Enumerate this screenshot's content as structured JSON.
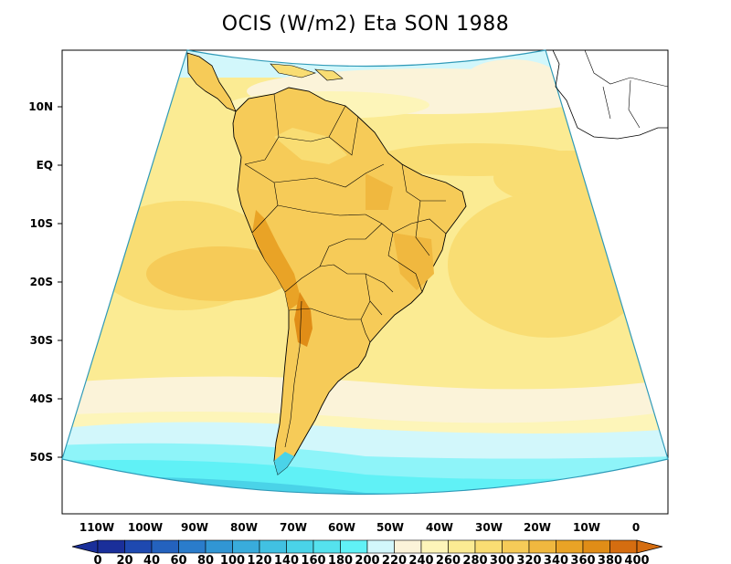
{
  "title": "OCIS (W/m2) Eta SON 1988",
  "axes": {
    "lat_labels": [
      "10N",
      "EQ",
      "10S",
      "20S",
      "30S",
      "40S",
      "50S"
    ],
    "lon_labels": [
      "110W",
      "100W",
      "90W",
      "80W",
      "70W",
      "60W",
      "50W",
      "40W",
      "30W",
      "20W",
      "10W",
      "0"
    ]
  },
  "colorbar": {
    "labels": [
      "0",
      "20",
      "40",
      "60",
      "80",
      "100",
      "120",
      "140",
      "160",
      "180",
      "200",
      "220",
      "240",
      "260",
      "280",
      "300",
      "320",
      "340",
      "360",
      "380",
      "400"
    ],
    "colors": [
      "#1a2f9a",
      "#1e49b0",
      "#2462be",
      "#2a7ccb",
      "#3196d4",
      "#39acdc",
      "#41c1e2",
      "#4ad3e8",
      "#55e2ee",
      "#60f1f6",
      "#d2f7fb",
      "#fbf3d9",
      "#fdf5b9",
      "#fbeb93",
      "#f9dd73",
      "#f6cb58",
      "#f0b83f",
      "#e9a326",
      "#e08d17",
      "#d56d10"
    ]
  },
  "colors": {
    "ocean_cool": "#d2f7fb",
    "ocean_cold": "#60f1f6",
    "pale": "#fbf3d9",
    "light_yellow": "#fbeb93",
    "mid_yellow": "#f9dd73",
    "orange": "#f0b83f",
    "dark_orange": "#e08d17",
    "outline": "#000000"
  }
}
